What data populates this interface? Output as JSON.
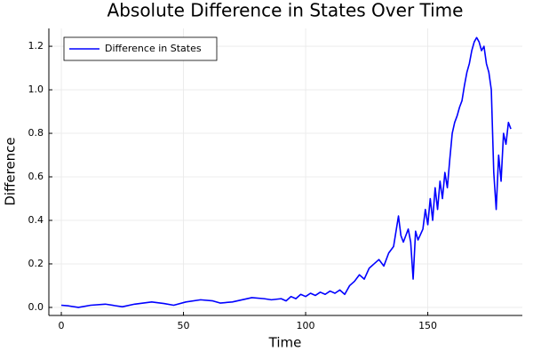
{
  "chart_data": {
    "type": "line",
    "title": "Absolute Difference in States Over Time",
    "x_label": "Time",
    "y_label": "Difference",
    "x": [
      0,
      3,
      7,
      12,
      18,
      22,
      25,
      30,
      37,
      42,
      46,
      51,
      57,
      62,
      65,
      70,
      78,
      83,
      86,
      90,
      92,
      94,
      96,
      98,
      100,
      102,
      104,
      106,
      108,
      110,
      112,
      114,
      116,
      118,
      120,
      122,
      124,
      126,
      128,
      130,
      132,
      134,
      136,
      138,
      139,
      140,
      142,
      143,
      144,
      145,
      146,
      148,
      149,
      150,
      151,
      152,
      153,
      154,
      155,
      156,
      157,
      158,
      159,
      160,
      161,
      162,
      163,
      164,
      165,
      166,
      167,
      168,
      169,
      170,
      171,
      172,
      173,
      174,
      175,
      176,
      177,
      178,
      179,
      180,
      181,
      182,
      183,
      184
    ],
    "series": [
      {
        "name": "Difference in States",
        "color": "#0000ff",
        "values": [
          0.01,
          0.007,
          0.0,
          0.01,
          0.015,
          0.008,
          0.003,
          0.015,
          0.025,
          0.018,
          0.01,
          0.025,
          0.035,
          0.03,
          0.02,
          0.025,
          0.045,
          0.04,
          0.035,
          0.04,
          0.03,
          0.05,
          0.04,
          0.06,
          0.05,
          0.065,
          0.055,
          0.07,
          0.06,
          0.075,
          0.065,
          0.08,
          0.06,
          0.1,
          0.12,
          0.15,
          0.13,
          0.18,
          0.2,
          0.22,
          0.19,
          0.25,
          0.28,
          0.42,
          0.33,
          0.3,
          0.36,
          0.3,
          0.13,
          0.35,
          0.31,
          0.36,
          0.45,
          0.38,
          0.5,
          0.4,
          0.55,
          0.45,
          0.58,
          0.5,
          0.62,
          0.55,
          0.68,
          0.8,
          0.85,
          0.88,
          0.92,
          0.95,
          1.02,
          1.08,
          1.12,
          1.18,
          1.22,
          1.24,
          1.22,
          1.18,
          1.2,
          1.12,
          1.08,
          1.0,
          0.62,
          0.45,
          0.7,
          0.58,
          0.8,
          0.75,
          0.85,
          0.82
        ]
      }
    ],
    "xlim": [
      -5.1,
      188.7
    ],
    "ylim": [
      -0.037,
      1.282
    ],
    "xticks": [
      0,
      50,
      100,
      150
    ],
    "yticks": [
      {
        "value": 0,
        "label": "0.0"
      },
      0.2,
      0.4,
      0.6,
      0.8,
      {
        "value": 1,
        "label": "1.0"
      },
      1.2
    ],
    "grid": true,
    "legend": "top-left"
  }
}
